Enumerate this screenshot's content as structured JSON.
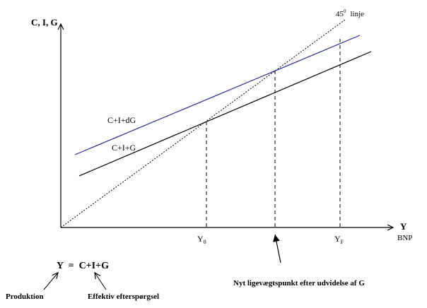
{
  "axes": {
    "y_label": "C, I, G",
    "x_label": "Y",
    "x_unit": "BNP"
  },
  "lines": {
    "forty_five": {
      "label_base": "45",
      "label_sup": "0",
      "label_word": "linje"
    },
    "c_i_dg": {
      "label": "C+I+dG",
      "color": "#2b2b9a"
    },
    "c_i_g": {
      "label": "C+I+G",
      "color": "#000000"
    }
  },
  "ticks": {
    "y0": {
      "base": "Y",
      "sub": "0"
    },
    "yf": {
      "base": "Y",
      "sub": "F"
    }
  },
  "annotations": {
    "new_equilibrium": "Nyt ligevægtspunkt efter udvidelse af G",
    "equation": "Y  =  C+I+G",
    "production": "Produktion",
    "effective_demand": "Effektiv efterspørgsel"
  }
}
